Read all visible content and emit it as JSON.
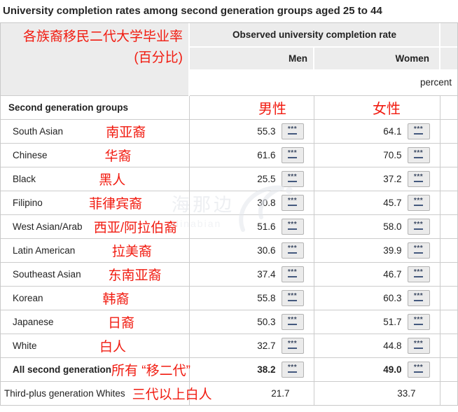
{
  "title": "University completion rates among second generation groups aged 25 to 44",
  "table": {
    "stub_annotation_line1": "各族裔移民二代大学毕业率",
    "stub_annotation_line2": "(百分比)",
    "observed_header": "Observed university completion rate",
    "col_men": "Men",
    "col_women": "Women",
    "unit_label": "percent",
    "group_header": "Second generation groups",
    "men_annotation": "男性",
    "women_annotation": "女性",
    "footnote_marker": "***",
    "rows": [
      {
        "label": "South Asian",
        "annotation": "南亚裔",
        "men": "55.3",
        "women": "64.1",
        "footnote": true,
        "bold": false,
        "indent": true
      },
      {
        "label": "Chinese",
        "annotation": "华裔",
        "men": "61.6",
        "women": "70.5",
        "footnote": true,
        "bold": false,
        "indent": true
      },
      {
        "label": "Black",
        "annotation": "黑人",
        "men": "25.5",
        "women": "37.2",
        "footnote": true,
        "bold": false,
        "indent": true
      },
      {
        "label": "Filipino",
        "annotation": "菲律宾裔",
        "men": "30.8",
        "women": "45.7",
        "footnote": true,
        "bold": false,
        "indent": true
      },
      {
        "label": "West Asian/Arab",
        "annotation": "西亚/阿拉伯裔",
        "men": "51.6",
        "women": "58.0",
        "footnote": true,
        "bold": false,
        "indent": true
      },
      {
        "label": "Latin American",
        "annotation": "拉美裔",
        "men": "30.6",
        "women": "39.9",
        "footnote": true,
        "bold": false,
        "indent": true
      },
      {
        "label": "Southeast Asian",
        "annotation": "东南亚裔",
        "men": "37.4",
        "women": "46.7",
        "footnote": true,
        "bold": false,
        "indent": true
      },
      {
        "label": "Korean",
        "annotation": "韩裔",
        "men": "55.8",
        "women": "60.3",
        "footnote": true,
        "bold": false,
        "indent": true
      },
      {
        "label": "Japanese",
        "annotation": "日裔",
        "men": "50.3",
        "women": "51.7",
        "footnote": true,
        "bold": false,
        "indent": true
      },
      {
        "label": "White",
        "annotation": "白人",
        "men": "32.7",
        "women": "44.8",
        "footnote": true,
        "bold": false,
        "indent": true
      },
      {
        "label": "All second generation",
        "annotation": "所有 “移二代”",
        "men": "38.2",
        "women": "49.0",
        "footnote": true,
        "bold": true,
        "indent": true
      },
      {
        "label": "Third-plus generation Whites",
        "annotation": "三代以上白人",
        "men": "21.7",
        "women": "33.7",
        "footnote": false,
        "bold": false,
        "indent": false
      }
    ]
  },
  "watermark": {
    "cn": "海那边",
    "en": "Hinabian"
  },
  "colors": {
    "annotation_red": "#f11b10",
    "header_gray": "#ececec",
    "border_gray": "#cbcbcb",
    "footnote_box_bg": "#ebebeb"
  },
  "chart_data": {
    "type": "table",
    "title": "University completion rates among second generation groups aged 25 to 44",
    "unit": "percent",
    "columns": [
      "Men",
      "Women"
    ],
    "categories": [
      "South Asian",
      "Chinese",
      "Black",
      "Filipino",
      "West Asian/Arab",
      "Latin American",
      "Southeast Asian",
      "Korean",
      "Japanese",
      "White",
      "All second generation",
      "Third-plus generation Whites"
    ],
    "series": [
      {
        "name": "Men",
        "values": [
          55.3,
          61.6,
          25.5,
          30.8,
          51.6,
          30.6,
          37.4,
          55.8,
          50.3,
          32.7,
          38.2,
          21.7
        ]
      },
      {
        "name": "Women",
        "values": [
          64.1,
          70.5,
          37.2,
          45.7,
          58.0,
          39.9,
          46.7,
          60.3,
          51.7,
          44.8,
          49.0,
          33.7
        ]
      }
    ]
  }
}
